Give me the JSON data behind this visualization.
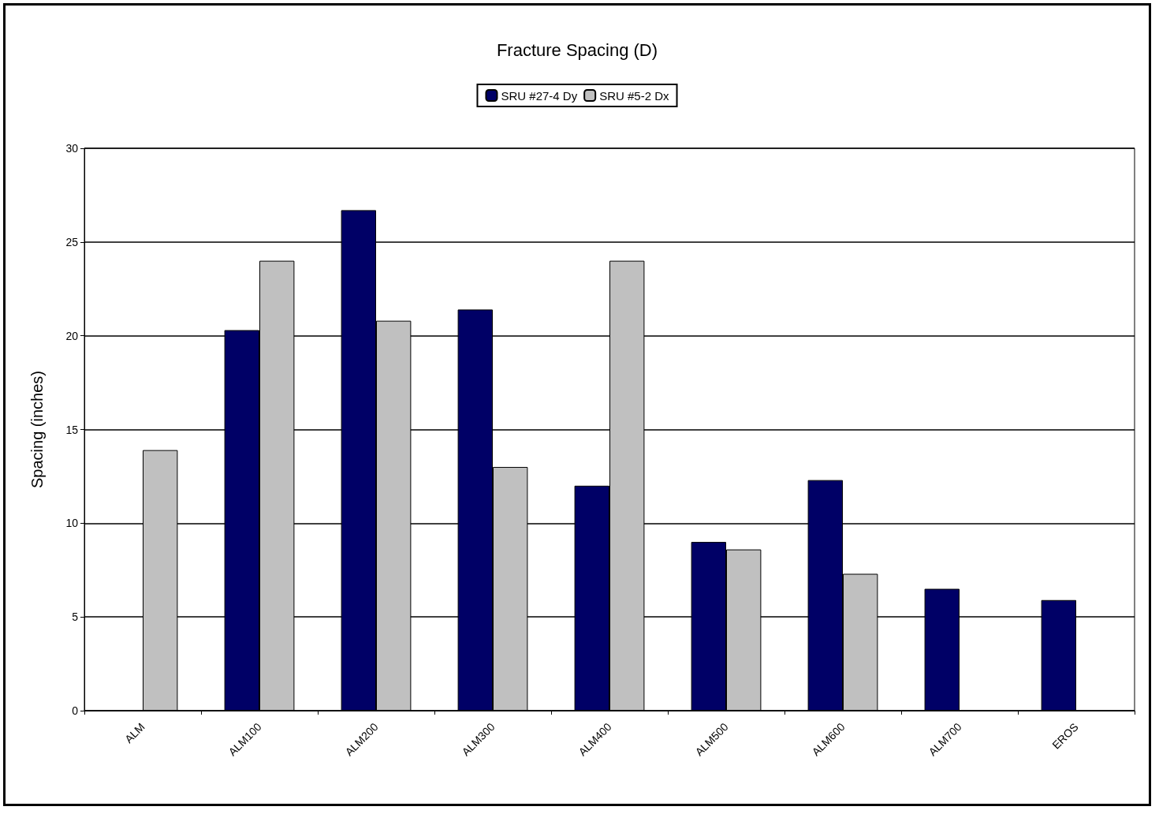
{
  "chart_data": {
    "type": "bar",
    "title": "Fracture Spacing (D)",
    "ylabel": "Spacing (inches)",
    "categories": [
      "ALM",
      "ALM100",
      "ALM200",
      "ALM300",
      "ALM400",
      "ALM500",
      "ALM600",
      "ALM700",
      "EROS"
    ],
    "series": [
      {
        "name": "SRU #27-4 Dy",
        "color": "#000066",
        "values": [
          null,
          20.3,
          26.7,
          21.4,
          12.0,
          9.0,
          12.3,
          6.5,
          5.9
        ]
      },
      {
        "name": "SRU #5-2 Dx",
        "color": "#c0c0c0",
        "values": [
          13.9,
          24.0,
          20.8,
          13.0,
          24.0,
          8.6,
          7.3,
          null,
          null
        ]
      }
    ],
    "ylim": [
      0,
      30
    ],
    "yticks": [
      0,
      5,
      10,
      15,
      20,
      25,
      30
    ],
    "grid": "y",
    "legend": "top"
  }
}
